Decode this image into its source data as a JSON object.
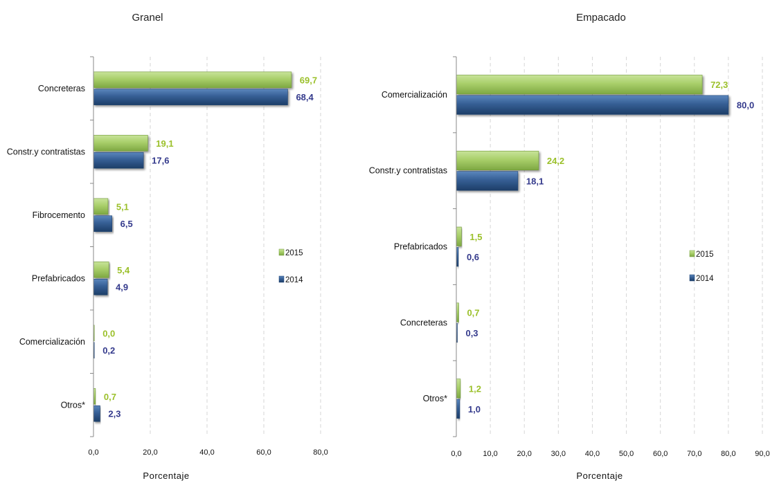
{
  "series_colors": {
    "2015": {
      "light": "#a9cf6a",
      "dark": "#6f9a36",
      "label": "#9bc02a"
    },
    "2014": {
      "light": "#3f6fa8",
      "dark": "#1c4170",
      "label": "#343a8c"
    }
  },
  "chart_data": [
    {
      "type": "bar",
      "orientation": "horizontal",
      "title": "Granel",
      "xlabel": "Porcentaje",
      "xlim": [
        0,
        80
      ],
      "xticks": [
        0,
        20,
        40,
        60,
        80
      ],
      "xtick_labels": [
        "0,0",
        "20,0",
        "40,0",
        "60,0",
        "80,0"
      ],
      "grid": "vertical-dashed",
      "legend_position": "right",
      "categories": [
        "Concreteras",
        "Constr.y contratistas",
        "Fibrocemento",
        "Prefabricados",
        "Comercialización",
        "Otros*"
      ],
      "series": [
        {
          "name": "2015",
          "values": [
            69.7,
            19.1,
            5.1,
            5.4,
            0.0,
            0.7
          ],
          "labels": [
            "69,7",
            "19,1",
            "5,1",
            "5,4",
            "0,0",
            "0,7"
          ]
        },
        {
          "name": "2014",
          "values": [
            68.4,
            17.6,
            6.5,
            4.9,
            0.2,
            2.3
          ],
          "labels": [
            "68,4",
            "17,6",
            "6,5",
            "4,9",
            "0,2",
            "2,3"
          ]
        }
      ]
    },
    {
      "type": "bar",
      "orientation": "horizontal",
      "title": "Empacado",
      "xlabel": "Porcentaje",
      "xlim": [
        0,
        90
      ],
      "xticks": [
        0,
        10,
        20,
        30,
        40,
        50,
        60,
        70,
        80,
        90
      ],
      "xtick_labels": [
        "0,0",
        "10,0",
        "20,0",
        "30,0",
        "40,0",
        "50,0",
        "60,0",
        "70,0",
        "80,0",
        "90,0"
      ],
      "grid": "vertical-dashed",
      "legend_position": "right",
      "categories": [
        "Comercialización",
        "Constr.y contratistas",
        "Prefabricados",
        "Concreteras",
        "Otros*"
      ],
      "series": [
        {
          "name": "2015",
          "values": [
            72.3,
            24.2,
            1.5,
            0.7,
            1.2
          ],
          "labels": [
            "72,3",
            "24,2",
            "1,5",
            "0,7",
            "1,2"
          ]
        },
        {
          "name": "2014",
          "values": [
            80.0,
            18.1,
            0.6,
            0.3,
            1.0
          ],
          "labels": [
            "80,0",
            "18,1",
            "0,6",
            "0,3",
            "1,0"
          ]
        }
      ]
    }
  ]
}
